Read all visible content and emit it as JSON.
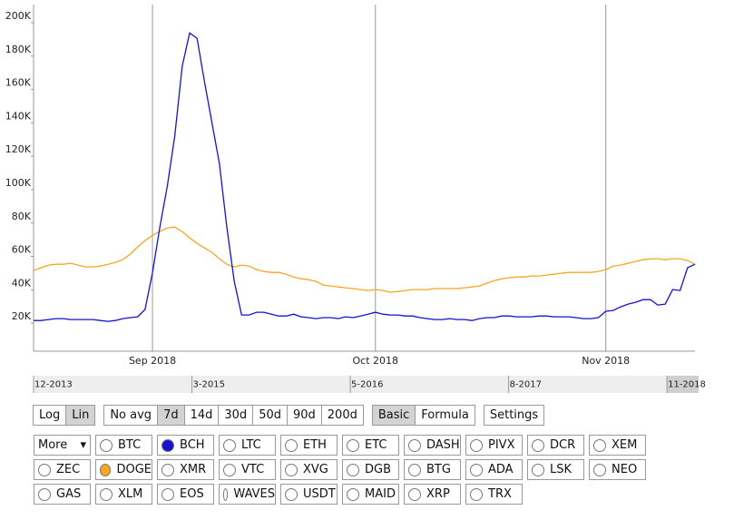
{
  "chart_data": {
    "type": "line",
    "categories": [
      null,
      null,
      null,
      null,
      null,
      null,
      null,
      null,
      null,
      null,
      null,
      null,
      null,
      null,
      null,
      null,
      "Sep 2018",
      null,
      null,
      null,
      null,
      null,
      null,
      null,
      null,
      null,
      null,
      null,
      null,
      null,
      null,
      null,
      null,
      null,
      null,
      null,
      null,
      null,
      null,
      null,
      null,
      null,
      null,
      null,
      null,
      null,
      "Oct 2018",
      null,
      null,
      null,
      null,
      null,
      null,
      null,
      null,
      null,
      null,
      null,
      null,
      null,
      null,
      null,
      null,
      null,
      null,
      null,
      null,
      null,
      null,
      null,
      null,
      null,
      null,
      null,
      null,
      null,
      null,
      "Nov 2018",
      null,
      null,
      null,
      null,
      null,
      null,
      null,
      null,
      null,
      null,
      null,
      null
    ],
    "series": [
      {
        "name": "BCH",
        "color": "#1414c8",
        "values": [
          21600,
          21600,
          22200,
          22700,
          22700,
          22200,
          22200,
          22200,
          22200,
          21600,
          21100,
          21600,
          22700,
          23300,
          23800,
          28200,
          50400,
          77600,
          102100,
          132000,
          173800,
          193900,
          190700,
          164600,
          140100,
          115700,
          77600,
          45000,
          24900,
          24900,
          26500,
          26500,
          25400,
          24300,
          24300,
          25400,
          23800,
          23300,
          22700,
          23300,
          23300,
          22700,
          23800,
          23300,
          24300,
          25400,
          26500,
          25400,
          24900,
          24900,
          24300,
          24300,
          23300,
          22700,
          22200,
          22200,
          22700,
          22200,
          22200,
          21600,
          22700,
          23300,
          23300,
          24300,
          24300,
          23800,
          23800,
          23800,
          24300,
          24300,
          23800,
          23800,
          23800,
          23300,
          22700,
          22700,
          23300,
          27100,
          27600,
          29800,
          31400,
          32500,
          34100,
          34100,
          30900,
          31400,
          40100,
          39600,
          53200,
          55300
        ]
      },
      {
        "name": "DOGE",
        "color": "#f5a623",
        "values": [
          51500,
          53200,
          54800,
          55300,
          55300,
          55900,
          54800,
          53700,
          53700,
          54200,
          55300,
          56400,
          58000,
          61300,
          65700,
          69500,
          72700,
          74900,
          77100,
          77600,
          74900,
          71100,
          67800,
          65100,
          62400,
          58600,
          55300,
          53700,
          54800,
          54200,
          52100,
          51000,
          50400,
          50400,
          49300,
          47700,
          46600,
          46100,
          45000,
          42800,
          42300,
          41700,
          41200,
          40700,
          40100,
          39600,
          40100,
          39600,
          38500,
          39000,
          39600,
          40100,
          40100,
          40100,
          40700,
          40700,
          40700,
          40700,
          41200,
          41700,
          42300,
          43900,
          45500,
          46600,
          47200,
          47700,
          47700,
          48300,
          48300,
          48800,
          49300,
          49900,
          50400,
          50400,
          50400,
          50400,
          51000,
          52100,
          54200,
          54800,
          55900,
          57000,
          58000,
          58600,
          58600,
          58000,
          58600,
          58600,
          57500,
          55300
        ]
      }
    ],
    "ylim": [
      3200,
      210900
    ],
    "yticks": [
      {
        "value": 20000,
        "label": "20K"
      },
      {
        "value": 40000,
        "label": "40K"
      },
      {
        "value": 60000,
        "label": "60K"
      },
      {
        "value": 80000,
        "label": "80K"
      },
      {
        "value": 100000,
        "label": "100K"
      },
      {
        "value": 120000,
        "label": "120K"
      },
      {
        "value": 140000,
        "label": "140K"
      },
      {
        "value": 160000,
        "label": "160K"
      },
      {
        "value": 180000,
        "label": "180K"
      },
      {
        "value": 200000,
        "label": "200K"
      }
    ]
  },
  "controls": {
    "range_labels": [
      "12-2013",
      "3-2015",
      "5-2016",
      "8-2017",
      "11-2018"
    ],
    "groups": [
      [
        {
          "label": "Log"
        },
        {
          "label": "Lin",
          "selected": true
        }
      ],
      [
        {
          "label": "No avg"
        },
        {
          "label": "7d",
          "selected": true
        },
        {
          "label": "14d"
        },
        {
          "label": "30d"
        },
        {
          "label": "50d"
        },
        {
          "label": "90d"
        },
        {
          "label": "200d"
        }
      ],
      [
        {
          "label": "Basic",
          "selected": true
        },
        {
          "label": "Formula"
        }
      ],
      [
        {
          "label": "Settings"
        }
      ]
    ],
    "more": "More",
    "coins": [
      "BTC",
      "BCH",
      "LTC",
      "ETH",
      "ETC",
      "DASH",
      "PIVX",
      "DCR",
      "XEM",
      "ZEC",
      "DOGE",
      "XMR",
      "VTC",
      "XVG",
      "DGB",
      "BTG",
      "ADA",
      "LSK",
      "NEO",
      "GAS",
      "XLM",
      "EOS",
      "WAVES",
      "USDT",
      "MAID",
      "XRP",
      "TRX"
    ]
  }
}
